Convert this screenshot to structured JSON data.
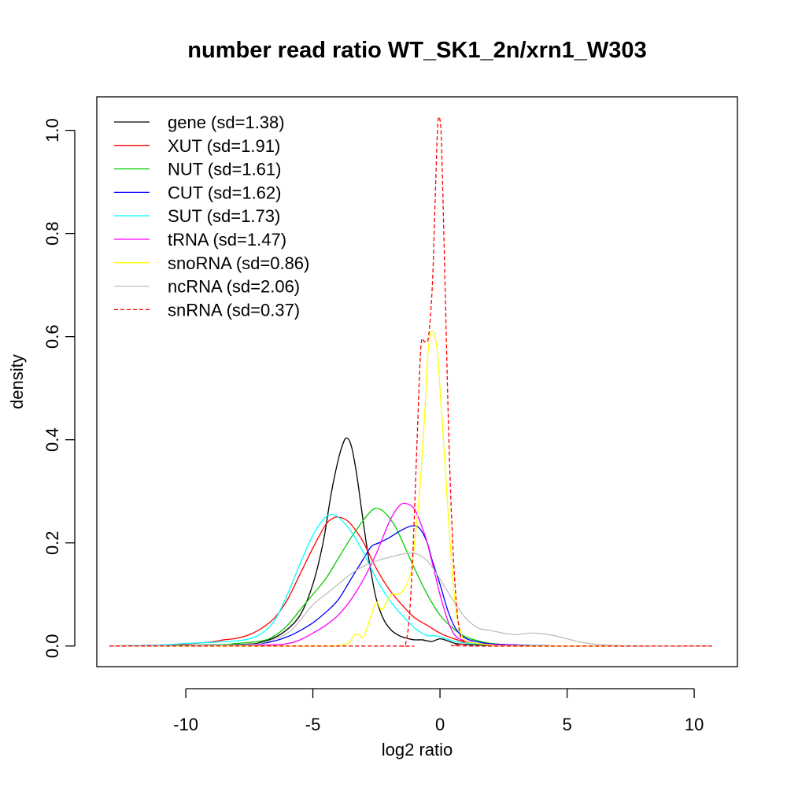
{
  "chart_data": {
    "type": "line",
    "title": "number read ratio WT_SK1_2n/xrn1_W303",
    "xlabel": "log2 ratio",
    "ylabel": "density",
    "xlim": [
      -13.5,
      11.7
    ],
    "ylim": [
      -0.04,
      1.065
    ],
    "xticks": [
      -10,
      -5,
      0,
      5,
      10
    ],
    "xtick_labels": [
      "-10",
      "-5",
      "0",
      "5",
      "10"
    ],
    "yticks": [
      0.0,
      0.2,
      0.4,
      0.6,
      0.8,
      1.0
    ],
    "ytick_labels": [
      "0.0",
      "0.2",
      "0.4",
      "0.6",
      "0.8",
      "1.0"
    ],
    "legend_position": "top-left",
    "grid": false,
    "series": [
      {
        "name": "gene (sd=1.38)",
        "color": "#000000",
        "dash": "solid",
        "x": [
          -13,
          -8,
          -7,
          -6.2,
          -5.5,
          -5,
          -4.6,
          -4.3,
          -4.1,
          -3.9,
          -3.7,
          -3.5,
          -3.3,
          -3.1,
          -2.9,
          -2.7,
          -2.5,
          -2.2,
          -1.9,
          -1.6,
          -1.3,
          -1,
          -0.7,
          -0.5,
          -0.3,
          0,
          0.3,
          0.6,
          1,
          1.5,
          2,
          3,
          5,
          10.7
        ],
        "y": [
          0,
          0.003,
          0.008,
          0.025,
          0.06,
          0.12,
          0.2,
          0.29,
          0.34,
          0.38,
          0.403,
          0.39,
          0.34,
          0.27,
          0.2,
          0.14,
          0.09,
          0.05,
          0.03,
          0.02,
          0.015,
          0.012,
          0.012,
          0.01,
          0.009,
          0.014,
          0.01,
          0.005,
          0.003,
          0.002,
          0.001,
          0.001,
          0,
          0
        ]
      },
      {
        "name": "XUT (sd=1.91)",
        "color": "#ff0000",
        "dash": "solid",
        "x": [
          -13,
          -11,
          -10,
          -9,
          -8.5,
          -8,
          -7.5,
          -7,
          -6.5,
          -6,
          -5.5,
          -5,
          -4.5,
          -4.2,
          -4,
          -3.7,
          -3.4,
          -3,
          -2.5,
          -2,
          -1.5,
          -1,
          -0.5,
          0,
          0.5,
          1,
          1.5,
          2,
          3,
          5,
          10.7
        ],
        "y": [
          0,
          0.002,
          0.004,
          0.008,
          0.012,
          0.015,
          0.022,
          0.035,
          0.055,
          0.09,
          0.14,
          0.19,
          0.235,
          0.248,
          0.25,
          0.245,
          0.23,
          0.2,
          0.15,
          0.11,
          0.08,
          0.055,
          0.04,
          0.025,
          0.015,
          0.008,
          0.005,
          0.003,
          0.002,
          0,
          0
        ]
      },
      {
        "name": "NUT (sd=1.61)",
        "color": "#00cd00",
        "dash": "solid",
        "x": [
          -13,
          -9,
          -8,
          -7,
          -6.5,
          -6,
          -5.5,
          -5,
          -4.5,
          -4,
          -3.5,
          -3,
          -2.7,
          -2.5,
          -2.2,
          -1.8,
          -1.5,
          -1,
          -0.5,
          0,
          0.5,
          1,
          1.5,
          2,
          3,
          5,
          10.7
        ],
        "y": [
          0,
          0.002,
          0.005,
          0.01,
          0.02,
          0.04,
          0.07,
          0.1,
          0.13,
          0.17,
          0.21,
          0.245,
          0.262,
          0.267,
          0.26,
          0.235,
          0.205,
          0.15,
          0.1,
          0.06,
          0.035,
          0.018,
          0.01,
          0.005,
          0.002,
          0,
          0
        ]
      },
      {
        "name": "CUT (sd=1.62)",
        "color": "#0000ff",
        "dash": "solid",
        "x": [
          -13,
          -8,
          -7,
          -6.5,
          -6,
          -5.5,
          -5,
          -4.5,
          -4,
          -3.5,
          -3,
          -2.7,
          -2.4,
          -2,
          -1.5,
          -1.1,
          -0.8,
          -0.5,
          -0.3,
          0,
          0.3,
          0.6,
          1,
          1.5,
          2,
          3,
          5,
          10.7
        ],
        "y": [
          0,
          0.002,
          0.005,
          0.01,
          0.018,
          0.03,
          0.045,
          0.065,
          0.09,
          0.13,
          0.17,
          0.193,
          0.2,
          0.21,
          0.225,
          0.233,
          0.228,
          0.2,
          0.165,
          0.12,
          0.07,
          0.035,
          0.015,
          0.008,
          0.004,
          0.002,
          0,
          0
        ]
      },
      {
        "name": "SUT (sd=1.73)",
        "color": "#00ffff",
        "dash": "solid",
        "x": [
          -13,
          -11,
          -10,
          -9,
          -8,
          -7.5,
          -7,
          -6.5,
          -6,
          -5.5,
          -5,
          -4.6,
          -4.3,
          -4,
          -3.7,
          -3.4,
          -3,
          -2.5,
          -2,
          -1.5,
          -1,
          -0.7,
          -0.5,
          -0.2,
          0,
          0.5,
          1,
          1.5,
          2,
          3,
          5,
          10.7
        ],
        "y": [
          0,
          0.002,
          0.005,
          0.007,
          0.01,
          0.014,
          0.025,
          0.05,
          0.1,
          0.16,
          0.215,
          0.245,
          0.255,
          0.25,
          0.235,
          0.215,
          0.18,
          0.13,
          0.09,
          0.06,
          0.035,
          0.025,
          0.02,
          0.02,
          0.018,
          0.01,
          0.006,
          0.004,
          0.002,
          0.001,
          0,
          0
        ]
      },
      {
        "name": "tRNA (sd=1.47)",
        "color": "#ff00ff",
        "dash": "solid",
        "x": [
          -13,
          -7,
          -6,
          -5.5,
          -5,
          -4.5,
          -4,
          -3.5,
          -3,
          -2.5,
          -2,
          -1.6,
          -1.3,
          -1,
          -0.7,
          -0.5,
          -0.2,
          0,
          0.3,
          0.6,
          1,
          1.5,
          2,
          3,
          5,
          10.7
        ],
        "y": [
          0,
          0.002,
          0.005,
          0.012,
          0.025,
          0.04,
          0.06,
          0.09,
          0.13,
          0.18,
          0.24,
          0.272,
          0.276,
          0.265,
          0.23,
          0.2,
          0.14,
          0.1,
          0.05,
          0.02,
          0.01,
          0.005,
          0.003,
          0.001,
          0,
          0
        ]
      },
      {
        "name": "snoRNA (sd=0.86)",
        "color": "#ffff00",
        "dash": "solid",
        "x": [
          -13,
          -5,
          -4.2,
          -3.6,
          -3.4,
          -3.2,
          -3,
          -2.7,
          -2.5,
          -2.3,
          -2.1,
          -1.9,
          -1.7,
          -1.5,
          -1.3,
          -1.1,
          -1,
          -0.8,
          -0.6,
          -0.5,
          -0.4,
          -0.3,
          -0.2,
          -0.1,
          0,
          0.2,
          0.4,
          0.6,
          0.8,
          1,
          1.5,
          2,
          3,
          10.7
        ],
        "y": [
          0,
          0,
          0,
          0.005,
          0.02,
          0.023,
          0.018,
          0.06,
          0.085,
          0.07,
          0.085,
          0.1,
          0.1,
          0.105,
          0.12,
          0.15,
          0.2,
          0.3,
          0.45,
          0.55,
          0.6,
          0.61,
          0.6,
          0.57,
          0.5,
          0.35,
          0.2,
          0.08,
          0.03,
          0.01,
          0.005,
          0.002,
          0,
          0
        ]
      },
      {
        "name": "ncRNA (sd=2.06)",
        "color": "#bebebe",
        "dash": "solid",
        "x": [
          -13,
          -8,
          -7,
          -6,
          -5.5,
          -5,
          -4.5,
          -4,
          -3.5,
          -3,
          -2.5,
          -2,
          -1.5,
          -1,
          -0.5,
          0,
          0.5,
          1,
          1.5,
          2,
          2.5,
          3,
          3.5,
          4,
          4.5,
          5,
          5.5,
          6,
          7,
          8,
          10.7
        ],
        "y": [
          0,
          0.002,
          0.006,
          0.025,
          0.05,
          0.08,
          0.1,
          0.12,
          0.14,
          0.155,
          0.165,
          0.172,
          0.178,
          0.18,
          0.165,
          0.13,
          0.09,
          0.055,
          0.035,
          0.03,
          0.025,
          0.022,
          0.025,
          0.024,
          0.02,
          0.014,
          0.008,
          0.004,
          0.001,
          0,
          0
        ]
      },
      {
        "name": "snRNA (sd=0.37)",
        "color": "#ff0000",
        "dash": "dashed",
        "x": [
          -13,
          -2,
          -1.5,
          -1.35,
          -1.2,
          -1.05,
          -0.9,
          -0.75,
          -0.6,
          -0.45,
          -0.3,
          -0.2,
          -0.1,
          -0.05,
          0,
          0.05,
          0.1,
          0.2,
          0.35,
          0.5,
          0.65,
          0.8,
          1,
          1.2,
          10.7
        ],
        "y": [
          0,
          0,
          0,
          0.005,
          0.06,
          0.2,
          0.4,
          0.58,
          0.59,
          0.6,
          0.7,
          0.85,
          1.0,
          1.025,
          1.02,
          0.99,
          0.9,
          0.7,
          0.4,
          0.2,
          0.08,
          0.02,
          0.005,
          0,
          0
        ]
      }
    ]
  }
}
